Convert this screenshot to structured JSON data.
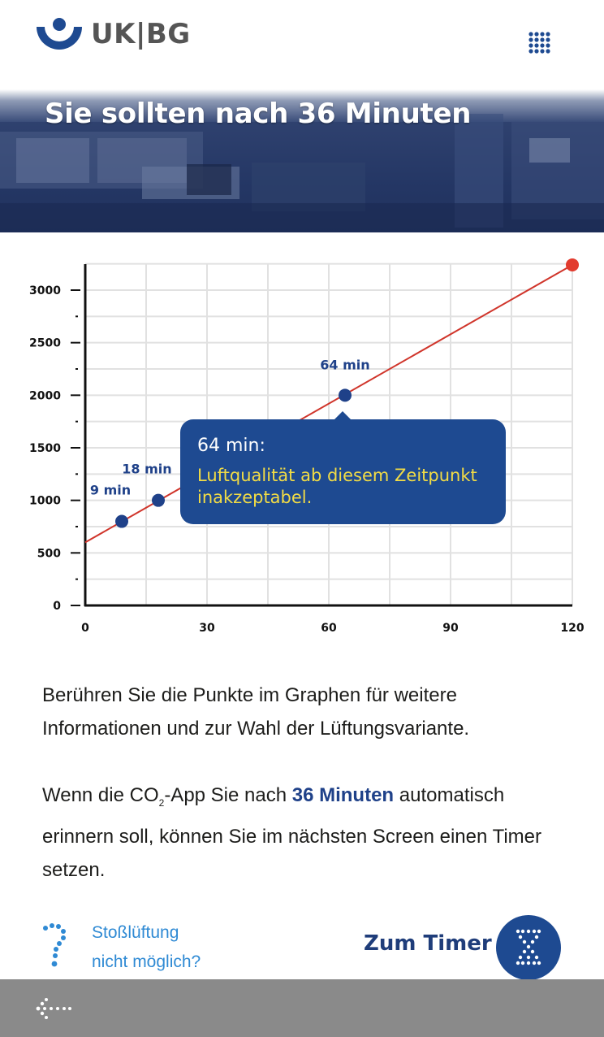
{
  "header": {
    "logo_text": "UK|BG",
    "menu_icon": "grid-menu-icon"
  },
  "banner": {
    "title": "Sie sollten nach 36 Minuten"
  },
  "chart_data": {
    "type": "line",
    "title": "",
    "xlabel": "",
    "ylabel": "",
    "xlim": [
      0,
      120
    ],
    "ylim": [
      0,
      3000
    ],
    "x_ticks": [
      0,
      30,
      60,
      90,
      120
    ],
    "y_ticks": [
      0,
      500,
      1000,
      1500,
      2000,
      2500,
      3000
    ],
    "grid": true,
    "series": [
      {
        "x": [
          0,
          120
        ],
        "y": [
          600,
          3240
        ]
      }
    ],
    "points": [
      {
        "x": 9,
        "y": 800,
        "label": "9 min"
      },
      {
        "x": 18,
        "y": 1000,
        "label": "18 min"
      },
      {
        "x": 64,
        "y": 2000,
        "label": "64 min"
      },
      {
        "x": 120,
        "y": 3240,
        "label": ""
      }
    ],
    "colors": {
      "line": "#d0352b",
      "point": "#1f4189",
      "end_point": "#e23b2e"
    }
  },
  "tooltip": {
    "title": "64 min:",
    "text": "Luftqualität ab diesem Zeitpunkt inakzeptabel."
  },
  "content": {
    "paragraph1": "Berühren Sie die Punkte im Graphen für weitere Informationen und zur Wahl der Lüftungsvariante.",
    "p2_before": "Wenn die CO",
    "p2_sub": "2",
    "p2_mid": "-App Sie nach ",
    "p2_highlight": "36 Minuten",
    "p2_after": " automatisch erinnern soll, können Sie im nächsten Screen einen Timer setzen."
  },
  "actions": {
    "help_line1": "Stoßlüftung",
    "help_line2": "nicht möglich?",
    "timer_label": "Zum Timer"
  },
  "colors": {
    "brand_blue": "#1e4a91",
    "link_blue": "#2f8ad4",
    "highlight_yellow": "#f2dc45",
    "footer_gray": "#8a8a8a"
  }
}
